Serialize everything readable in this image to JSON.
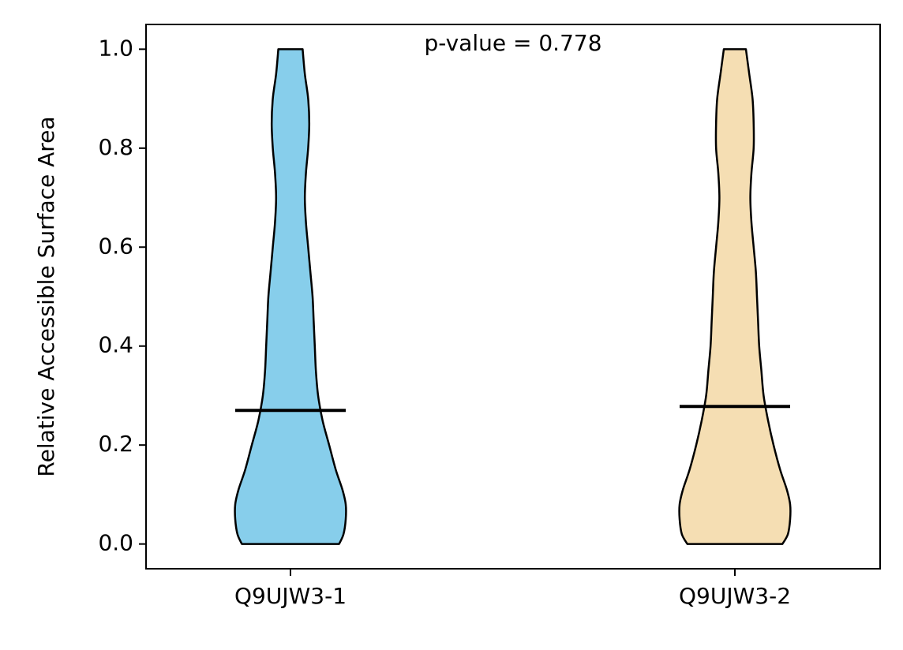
{
  "chart_data": {
    "type": "violin",
    "xlabel": "",
    "ylabel": "Relative Accessible Surface Area",
    "ylim": [
      -0.05,
      1.05
    ],
    "yticks": [
      0.0,
      0.2,
      0.4,
      0.6,
      0.8,
      1.0
    ],
    "ytick_labels": [
      "0.0",
      "0.2",
      "0.4",
      "0.6",
      "0.8",
      "1.0"
    ],
    "categories": [
      "Q9UJW3-1",
      "Q9UJW3-2"
    ],
    "annotation": "p-value = 0.778",
    "grid": false,
    "series": [
      {
        "category": "Q9UJW3-1",
        "color": "#87CEEB",
        "median": 0.27,
        "min": 0.0,
        "max": 1.0,
        "density_profile": [
          {
            "y": 0.0,
            "halfwidth": 0.44
          },
          {
            "y": 0.02,
            "halfwidth": 0.48
          },
          {
            "y": 0.05,
            "halfwidth": 0.5
          },
          {
            "y": 0.08,
            "halfwidth": 0.5
          },
          {
            "y": 0.11,
            "halfwidth": 0.47
          },
          {
            "y": 0.15,
            "halfwidth": 0.41
          },
          {
            "y": 0.2,
            "halfwidth": 0.35
          },
          {
            "y": 0.25,
            "halfwidth": 0.29
          },
          {
            "y": 0.3,
            "halfwidth": 0.25
          },
          {
            "y": 0.35,
            "halfwidth": 0.23
          },
          {
            "y": 0.4,
            "halfwidth": 0.22
          },
          {
            "y": 0.45,
            "halfwidth": 0.21
          },
          {
            "y": 0.5,
            "halfwidth": 0.2
          },
          {
            "y": 0.55,
            "halfwidth": 0.18
          },
          {
            "y": 0.6,
            "halfwidth": 0.16
          },
          {
            "y": 0.65,
            "halfwidth": 0.14
          },
          {
            "y": 0.7,
            "halfwidth": 0.13
          },
          {
            "y": 0.75,
            "halfwidth": 0.14
          },
          {
            "y": 0.8,
            "halfwidth": 0.16
          },
          {
            "y": 0.85,
            "halfwidth": 0.17
          },
          {
            "y": 0.9,
            "halfwidth": 0.16
          },
          {
            "y": 0.95,
            "halfwidth": 0.13
          },
          {
            "y": 1.0,
            "halfwidth": 0.11
          }
        ]
      },
      {
        "category": "Q9UJW3-2",
        "color": "#F5DEB3",
        "median": 0.278,
        "min": 0.0,
        "max": 1.0,
        "density_profile": [
          {
            "y": 0.0,
            "halfwidth": 0.43
          },
          {
            "y": 0.02,
            "halfwidth": 0.48
          },
          {
            "y": 0.05,
            "halfwidth": 0.5
          },
          {
            "y": 0.08,
            "halfwidth": 0.5
          },
          {
            "y": 0.11,
            "halfwidth": 0.47
          },
          {
            "y": 0.15,
            "halfwidth": 0.41
          },
          {
            "y": 0.2,
            "halfwidth": 0.35
          },
          {
            "y": 0.25,
            "halfwidth": 0.3
          },
          {
            "y": 0.3,
            "halfwidth": 0.26
          },
          {
            "y": 0.35,
            "halfwidth": 0.24
          },
          {
            "y": 0.4,
            "halfwidth": 0.22
          },
          {
            "y": 0.45,
            "halfwidth": 0.21
          },
          {
            "y": 0.5,
            "halfwidth": 0.2
          },
          {
            "y": 0.55,
            "halfwidth": 0.19
          },
          {
            "y": 0.6,
            "halfwidth": 0.17
          },
          {
            "y": 0.65,
            "halfwidth": 0.15
          },
          {
            "y": 0.7,
            "halfwidth": 0.14
          },
          {
            "y": 0.75,
            "halfwidth": 0.15
          },
          {
            "y": 0.8,
            "halfwidth": 0.17
          },
          {
            "y": 0.85,
            "halfwidth": 0.17
          },
          {
            "y": 0.9,
            "halfwidth": 0.16
          },
          {
            "y": 0.95,
            "halfwidth": 0.13
          },
          {
            "y": 1.0,
            "halfwidth": 0.1
          }
        ]
      }
    ]
  }
}
